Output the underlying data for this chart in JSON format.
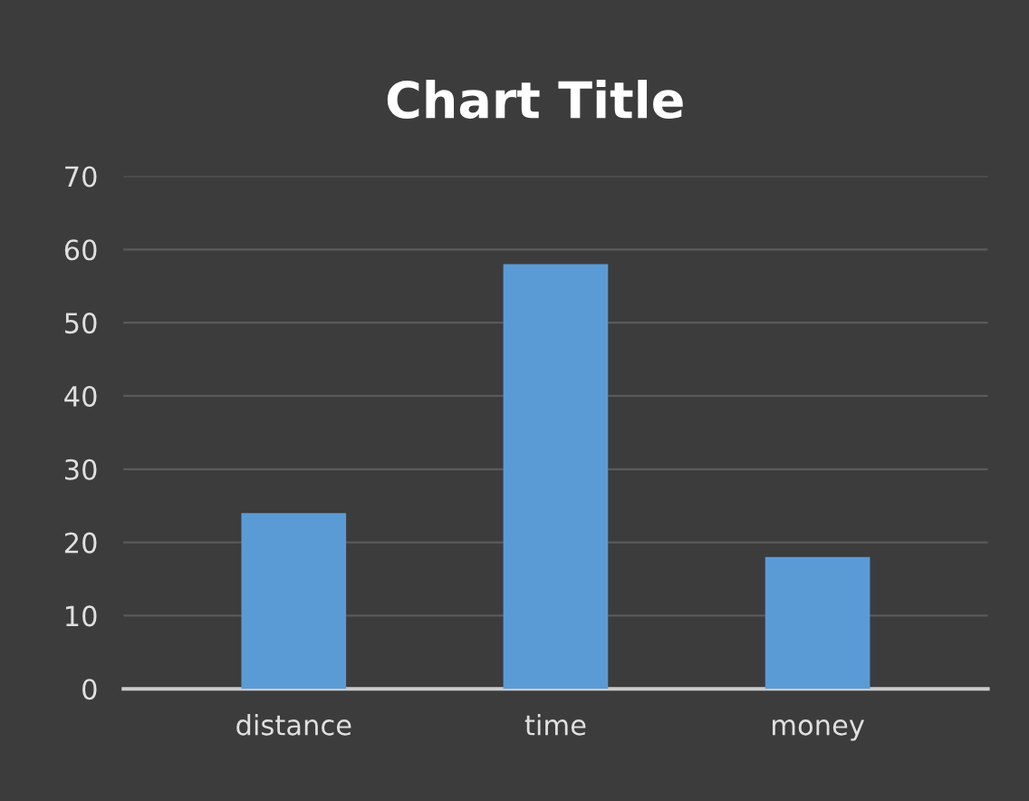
{
  "chart_data": {
    "type": "bar",
    "title": "Chart Title",
    "categories": [
      "distance",
      "time",
      "money"
    ],
    "values": [
      24,
      58,
      18
    ],
    "color": "#5b9bd5",
    "ylim": [
      0,
      70
    ],
    "yticks": [
      0,
      10,
      20,
      30,
      40,
      50,
      60,
      70
    ],
    "grid": "y"
  }
}
